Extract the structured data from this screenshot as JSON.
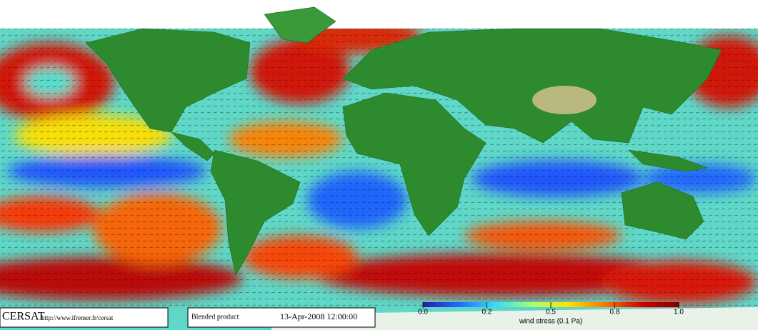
{
  "footer": {
    "logo": "CERSAT",
    "url": "http://www.ifremer.fr/cersat",
    "product": "Blended product",
    "date": "13-Apr-2008 12:00:00"
  },
  "colorbar": {
    "label": "wind stress (0.1 Pa)",
    "range": [
      0,
      1
    ],
    "ticks": [
      {
        "value": 0,
        "label": "0.0"
      },
      0.2,
      0.5,
      0.8,
      {
        "value": 1,
        "label": "1.0"
      }
    ],
    "colors": [
      "#2a1aa8",
      "#1e6cff",
      "#30e0ff",
      "#a8ff70",
      "#ffe000",
      "#ff7000",
      "#d00000",
      "#800000"
    ]
  }
}
